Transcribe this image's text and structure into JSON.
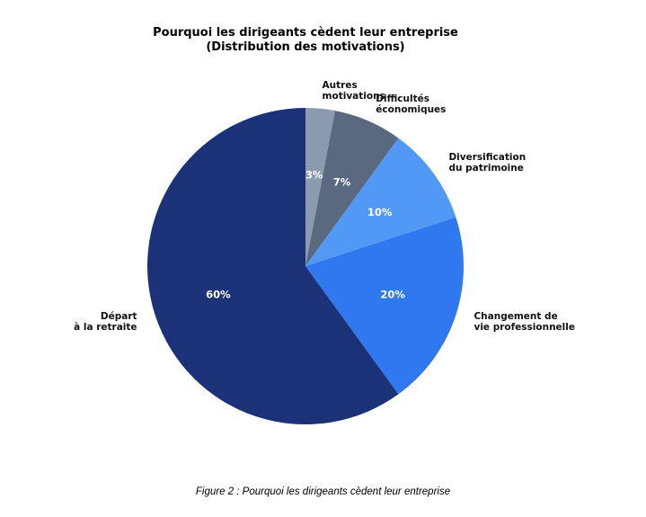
{
  "chart_data": {
    "type": "pie",
    "title_lines": [
      "Pourquoi les dirigeants cèdent leur entreprise",
      "(Distribution des motivations)"
    ],
    "slices": [
      {
        "label_lines": [
          "Autres",
          "motivations"
        ],
        "value": 3,
        "pct_label": "3%",
        "color": "#8c9ab0"
      },
      {
        "label_lines": [
          "Difficultés",
          "économiques"
        ],
        "value": 7,
        "pct_label": "7%",
        "color": "#5a6880"
      },
      {
        "label_lines": [
          "Diversification",
          "du patrimoine"
        ],
        "value": 10,
        "pct_label": "10%",
        "color": "#5199f5"
      },
      {
        "label_lines": [
          "Changement de",
          "vie professionnelle"
        ],
        "value": 20,
        "pct_label": "20%",
        "color": "#3078ef"
      },
      {
        "label_lines": [
          "Départ",
          "à la retraite"
        ],
        "value": 60,
        "pct_label": "60%",
        "color": "#1b3278"
      }
    ],
    "start": "top",
    "direction": "clockwise"
  },
  "caption": "Figure 2 : Pourquoi les dirigeants cèdent leur entreprise"
}
